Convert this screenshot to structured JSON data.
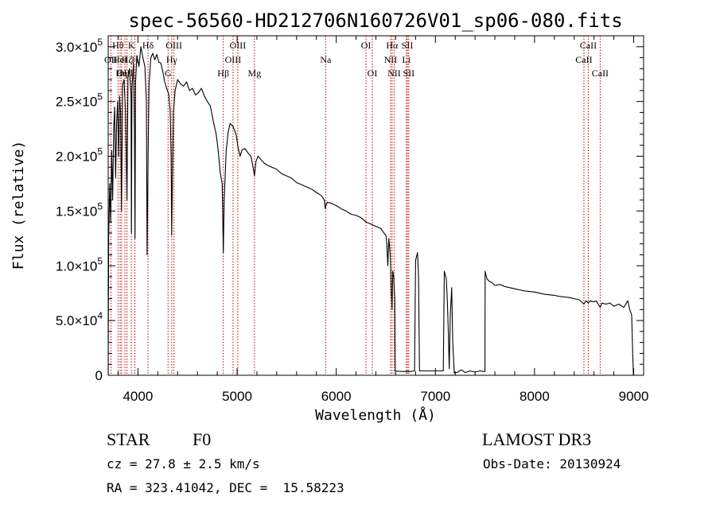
{
  "chart_data": {
    "type": "line",
    "title": "spec-56560-HD212706N160726V01_sp06-080.fits",
    "xlabel": "Wavelength (Å)",
    "ylabel": "Flux (relative)",
    "xlim": [
      3700,
      9100
    ],
    "ylim": [
      0,
      310000
    ],
    "x_ticks": [
      {
        "value": 4000,
        "label": "4000"
      },
      {
        "value": 5000,
        "label": "5000"
      },
      {
        "value": 6000,
        "label": "6000"
      },
      {
        "value": 7000,
        "label": "7000"
      },
      {
        "value": 8000,
        "label": "8000"
      },
      {
        "value": 9000,
        "label": "9000"
      }
    ],
    "y_ticks": [
      {
        "value": 0,
        "mant": "0",
        "exp": ""
      },
      {
        "value": 50000,
        "mant": "5.0×10",
        "exp": "4"
      },
      {
        "value": 100000,
        "mant": "1.0×10",
        "exp": "5"
      },
      {
        "value": 150000,
        "mant": "1.5×10",
        "exp": "5"
      },
      {
        "value": 200000,
        "mant": "2.0×10",
        "exp": "5"
      },
      {
        "value": 250000,
        "mant": "2.5×10",
        "exp": "5"
      },
      {
        "value": 300000,
        "mant": "3.0×10",
        "exp": "5"
      }
    ],
    "series": [
      {
        "name": "flux",
        "points": [
          [
            3700,
            0
          ],
          [
            3705,
            125000
          ],
          [
            3715,
            175000
          ],
          [
            3725,
            140000
          ],
          [
            3735,
            205000
          ],
          [
            3745,
            160000
          ],
          [
            3755,
            225000
          ],
          [
            3765,
            245000
          ],
          [
            3775,
            180000
          ],
          [
            3785,
            230000
          ],
          [
            3795,
            250000
          ],
          [
            3805,
            200000
          ],
          [
            3815,
            255000
          ],
          [
            3825,
            240000
          ],
          [
            3835,
            150000
          ],
          [
            3845,
            265000
          ],
          [
            3860,
            270000
          ],
          [
            3875,
            240000
          ],
          [
            3889,
            160000
          ],
          [
            3900,
            272000
          ],
          [
            3915,
            280000
          ],
          [
            3930,
            255000
          ],
          [
            3934,
            130000
          ],
          [
            3940,
            262000
          ],
          [
            3955,
            285000
          ],
          [
            3965,
            225000
          ],
          [
            3970,
            125000
          ],
          [
            3976,
            268000
          ],
          [
            3990,
            292000
          ],
          [
            4010,
            282000
          ],
          [
            4030,
            300000
          ],
          [
            4050,
            290000
          ],
          [
            4070,
            282000
          ],
          [
            4085,
            250000
          ],
          [
            4092,
            110000
          ],
          [
            4101,
            190000
          ],
          [
            4112,
            265000
          ],
          [
            4130,
            290000
          ],
          [
            4150,
            294000
          ],
          [
            4170,
            288000
          ],
          [
            4190,
            293000
          ],
          [
            4210,
            286000
          ],
          [
            4230,
            285000
          ],
          [
            4250,
            278000
          ],
          [
            4270,
            268000
          ],
          [
            4290,
            262000
          ],
          [
            4310,
            257000
          ],
          [
            4325,
            242000
          ],
          [
            4335,
            200000
          ],
          [
            4340,
            128000
          ],
          [
            4347,
            172000
          ],
          [
            4358,
            240000
          ],
          [
            4375,
            260000
          ],
          [
            4400,
            270000
          ],
          [
            4430,
            266000
          ],
          [
            4460,
            264000
          ],
          [
            4490,
            268000
          ],
          [
            4520,
            260000
          ],
          [
            4550,
            262000
          ],
          [
            4580,
            256000
          ],
          [
            4610,
            258000
          ],
          [
            4640,
            262000
          ],
          [
            4670,
            255000
          ],
          [
            4700,
            250000
          ],
          [
            4730,
            246000
          ],
          [
            4760,
            232000
          ],
          [
            4790,
            220000
          ],
          [
            4810,
            205000
          ],
          [
            4830,
            185000
          ],
          [
            4850,
            175000
          ],
          [
            4861,
            112000
          ],
          [
            4870,
            160000
          ],
          [
            4890,
            205000
          ],
          [
            4910,
            222000
          ],
          [
            4930,
            230000
          ],
          [
            4960,
            227000
          ],
          [
            4990,
            220000
          ],
          [
            5010,
            208000
          ],
          [
            5030,
            200000
          ],
          [
            5050,
            206000
          ],
          [
            5080,
            207000
          ],
          [
            5110,
            203000
          ],
          [
            5140,
            200000
          ],
          [
            5165,
            188000
          ],
          [
            5175,
            182000
          ],
          [
            5190,
            195000
          ],
          [
            5210,
            200000
          ],
          [
            5240,
            197000
          ],
          [
            5270,
            194000
          ],
          [
            5300,
            192000
          ],
          [
            5350,
            190000
          ],
          [
            5400,
            188000
          ],
          [
            5450,
            184000
          ],
          [
            5500,
            182000
          ],
          [
            5550,
            180000
          ],
          [
            5600,
            176000
          ],
          [
            5650,
            174000
          ],
          [
            5700,
            172000
          ],
          [
            5750,
            170000
          ],
          [
            5800,
            167000
          ],
          [
            5850,
            164000
          ],
          [
            5880,
            160000
          ],
          [
            5890,
            152000
          ],
          [
            5896,
            155000
          ],
          [
            5910,
            158000
          ],
          [
            5950,
            157000
          ],
          [
            6000,
            155000
          ],
          [
            6050,
            152000
          ],
          [
            6100,
            150000
          ],
          [
            6150,
            147000
          ],
          [
            6200,
            146000
          ],
          [
            6250,
            144000
          ],
          [
            6300,
            140000
          ],
          [
            6350,
            138000
          ],
          [
            6400,
            136000
          ],
          [
            6450,
            134000
          ],
          [
            6480,
            130000
          ],
          [
            6500,
            128000
          ],
          [
            6510,
            120000
          ],
          [
            6520,
            100000
          ],
          [
            6530,
            125000
          ],
          [
            6545,
            110000
          ],
          [
            6555,
            80000
          ],
          [
            6563,
            60000
          ],
          [
            6570,
            95000
          ],
          [
            6580,
            90000
          ],
          [
            6590,
            70000
          ],
          [
            6595,
            4000
          ],
          [
            6650,
            3500
          ],
          [
            6700,
            3500
          ],
          [
            6750,
            3500
          ],
          [
            6790,
            4000
          ],
          [
            6800,
            105000
          ],
          [
            6820,
            112000
          ],
          [
            6830,
            90000
          ],
          [
            6840,
            4000
          ],
          [
            6900,
            4000
          ],
          [
            7000,
            4000
          ],
          [
            7080,
            4000
          ],
          [
            7090,
            95000
          ],
          [
            7110,
            88000
          ],
          [
            7120,
            70000
          ],
          [
            7130,
            40000
          ],
          [
            7140,
            6000
          ],
          [
            7150,
            55000
          ],
          [
            7165,
            80000
          ],
          [
            7175,
            30000
          ],
          [
            7190,
            2000
          ],
          [
            7230,
            3000
          ],
          [
            7260,
            5000
          ],
          [
            7300,
            2500
          ],
          [
            7350,
            4000
          ],
          [
            7400,
            3000
          ],
          [
            7450,
            4000
          ],
          [
            7480,
            3500
          ],
          [
            7500,
            3500
          ],
          [
            7502,
            95000
          ],
          [
            7520,
            88000
          ],
          [
            7540,
            86000
          ],
          [
            7560,
            85000
          ],
          [
            7580,
            84000
          ],
          [
            7600,
            82000
          ],
          [
            7650,
            83000
          ],
          [
            7700,
            81000
          ],
          [
            7750,
            80000
          ],
          [
            7800,
            79000
          ],
          [
            7850,
            78000
          ],
          [
            7900,
            77000
          ],
          [
            7950,
            76500
          ],
          [
            8000,
            76000
          ],
          [
            8050,
            75000
          ],
          [
            8100,
            74000
          ],
          [
            8150,
            73500
          ],
          [
            8200,
            73000
          ],
          [
            8250,
            72000
          ],
          [
            8300,
            71500
          ],
          [
            8350,
            71000
          ],
          [
            8400,
            70000
          ],
          [
            8450,
            69000
          ],
          [
            8498,
            65000
          ],
          [
            8520,
            68000
          ],
          [
            8542,
            66000
          ],
          [
            8560,
            68000
          ],
          [
            8600,
            67000
          ],
          [
            8620,
            68000
          ],
          [
            8662,
            62000
          ],
          [
            8680,
            66000
          ],
          [
            8720,
            65000
          ],
          [
            8760,
            66000
          ],
          [
            8800,
            63000
          ],
          [
            8850,
            65000
          ],
          [
            8900,
            62000
          ],
          [
            8940,
            68000
          ],
          [
            8960,
            60000
          ],
          [
            8980,
            55000
          ],
          [
            8990,
            20000
          ],
          [
            8997,
            0
          ]
        ]
      }
    ],
    "line_markers": [
      {
        "wavelength": 3727,
        "label": "OII",
        "row": 1
      },
      {
        "wavelength": 3799,
        "label": "Hθ",
        "row": 0
      },
      {
        "wavelength": 3820,
        "label": "HeI",
        "row": 1
      },
      {
        "wavelength": 3835,
        "label": "Hη",
        "row": 2
      },
      {
        "wavelength": 3869,
        "label": "OIII",
        "row": 2
      },
      {
        "wavelength": 3889,
        "label": "Hζ",
        "row": 1
      },
      {
        "wavelength": 3934,
        "label": "K",
        "row": 0
      },
      {
        "wavelength": 3969,
        "label": "H",
        "row": 1
      },
      {
        "wavelength": 4102,
        "label": "Hδ",
        "row": 0
      },
      {
        "wavelength": 4304,
        "label": "G",
        "row": 2
      },
      {
        "wavelength": 4341,
        "label": "Hγ",
        "row": 1
      },
      {
        "wavelength": 4363,
        "label": "OIII",
        "row": 0
      },
      {
        "wavelength": 4861,
        "label": "Hβ",
        "row": 2
      },
      {
        "wavelength": 4959,
        "label": "OIII",
        "row": 1
      },
      {
        "wavelength": 5007,
        "label": "OIII",
        "row": 0
      },
      {
        "wavelength": 5175,
        "label": "Mg",
        "row": 2
      },
      {
        "wavelength": 5893,
        "label": "Na",
        "row": 1
      },
      {
        "wavelength": 6300,
        "label": "OI",
        "row": 0
      },
      {
        "wavelength": 6364,
        "label": "OI",
        "row": 2
      },
      {
        "wavelength": 6548,
        "label": "NII",
        "row": 1
      },
      {
        "wavelength": 6563,
        "label": "Hα",
        "row": 0
      },
      {
        "wavelength": 6584,
        "label": "NII",
        "row": 2
      },
      {
        "wavelength": 6707,
        "label": "Li",
        "row": 1
      },
      {
        "wavelength": 6717,
        "label": "SII",
        "row": 0
      },
      {
        "wavelength": 6731,
        "label": "SII",
        "row": 2
      },
      {
        "wavelength": 8498,
        "label": "CaII",
        "row": 1
      },
      {
        "wavelength": 8542,
        "label": "CaII",
        "row": 0
      },
      {
        "wavelength": 8662,
        "label": "CaII",
        "row": 2
      }
    ]
  },
  "info": {
    "object_class": "STAR",
    "subclass": "F0",
    "survey": "LAMOST DR3",
    "redshift_text": "cz = 27.8 ± 2.5 km/s",
    "obs_date_text": "Obs-Date: 20130924",
    "coords_text": "RA = 323.41042, DEC =  15.58223"
  }
}
